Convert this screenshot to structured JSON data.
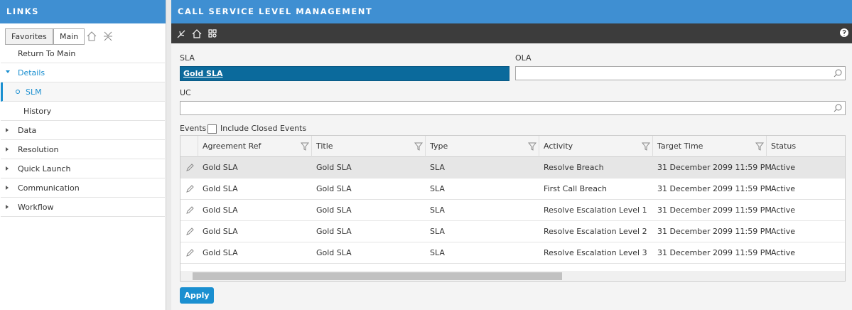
{
  "links": {
    "title": "LINKS",
    "tabs": [
      "Favorites",
      "Main"
    ],
    "top_link": "Return To Main",
    "groups": [
      {
        "label": "Details",
        "children": [
          "SLM",
          "History"
        ]
      },
      {
        "label": "Data"
      },
      {
        "label": "Resolution"
      },
      {
        "label": "Quick Launch"
      },
      {
        "label": "Communication"
      },
      {
        "label": "Workflow"
      }
    ]
  },
  "main": {
    "title": "CALL SERVICE LEVEL MANAGEMENT",
    "fields": {
      "sla": {
        "label": "SLA",
        "value": "Gold SLA"
      },
      "ola": {
        "label": "OLA"
      },
      "uc": {
        "label": "UC"
      }
    },
    "events": {
      "label": "Events",
      "checkbox": "Include Closed Events"
    },
    "table": {
      "columns": [
        "Agreement Ref",
        "Title",
        "Type",
        "Activity",
        "Target Time",
        "Status"
      ],
      "rows": [
        [
          "Gold SLA",
          "Gold SLA",
          "SLA",
          "Resolve Breach",
          "31 December 2099 11:59 PM",
          "Active"
        ],
        [
          "Gold SLA",
          "Gold SLA",
          "SLA",
          "First Call Breach",
          "31 December 2099 11:59 PM",
          "Active"
        ],
        [
          "Gold SLA",
          "Gold SLA",
          "SLA",
          "Resolve Escalation Level 1",
          "31 December 2099 11:59 PM",
          "Active"
        ],
        [
          "Gold SLA",
          "Gold SLA",
          "SLA",
          "Resolve Escalation Level 2",
          "31 December 2099 11:59 PM",
          "Active"
        ],
        [
          "Gold SLA",
          "Gold SLA",
          "SLA",
          "Resolve Escalation Level 3",
          "31 December 2099 11:59 PM",
          "Active"
        ]
      ]
    },
    "button": "Apply"
  }
}
